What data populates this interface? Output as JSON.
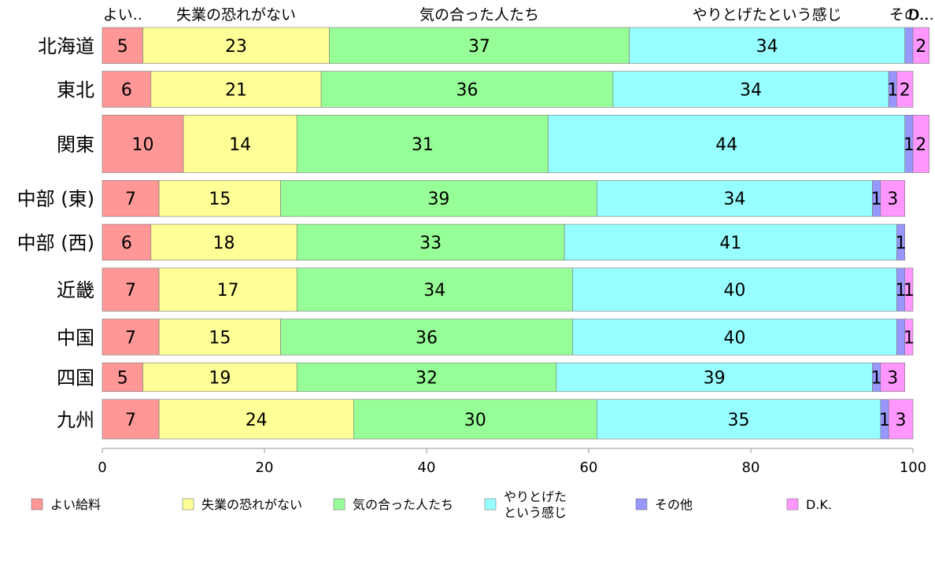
{
  "chart_data": {
    "type": "bar",
    "orientation": "horizontal",
    "stacked": true,
    "categories": [
      "北海道",
      "東北",
      "関東",
      "中部 (東)",
      "中部 (西)",
      "近畿",
      "中国",
      "四国",
      "九州"
    ],
    "category_weights": [
      1,
      1,
      1.6,
      1,
      1,
      1.2,
      1,
      0.8,
      1.1
    ],
    "series": [
      {
        "name": "よい給料",
        "short_label": "よい..",
        "color": "#ff9797",
        "values": [
          5,
          6,
          10,
          7,
          6,
          7,
          7,
          5,
          7
        ]
      },
      {
        "name": "失業の恐れがない",
        "short_label": "失業の恐れがない",
        "color": "#ffff97",
        "values": [
          23,
          21,
          14,
          15,
          18,
          17,
          15,
          19,
          24
        ]
      },
      {
        "name": "気の合った人たち",
        "short_label": "気の合った人たち",
        "color": "#97ff97",
        "values": [
          37,
          36,
          31,
          39,
          33,
          34,
          36,
          32,
          30
        ]
      },
      {
        "name": "やりとげたという感じ",
        "legend_lines": [
          "やりとげた",
          "という感じ"
        ],
        "short_label": "やりとげたという感じ",
        "color": "#97ffff",
        "values": [
          34,
          34,
          44,
          34,
          41,
          40,
          40,
          39,
          35
        ]
      },
      {
        "name": "その他",
        "short_label": "その..",
        "color": "#9797ff",
        "values": [
          1,
          1,
          1,
          1,
          1,
          1,
          1,
          1,
          1
        ],
        "value_labels": [
          "",
          "1",
          "1",
          "1",
          "1",
          "1",
          "",
          "1",
          "1"
        ]
      },
      {
        "name": "D.K.",
        "short_label": "D...",
        "color": "#ff97ff",
        "values": [
          2,
          2,
          2,
          3,
          0,
          1,
          1,
          3,
          3
        ],
        "value_labels": [
          "2",
          "2",
          "2",
          "3",
          "",
          "1",
          "1",
          "3",
          "3"
        ]
      }
    ],
    "top_label_row": 0,
    "xlim": [
      0,
      100
    ],
    "xticks": [
      0,
      20,
      40,
      60,
      80,
      100
    ],
    "grid": false,
    "legend_position": "bottom"
  }
}
